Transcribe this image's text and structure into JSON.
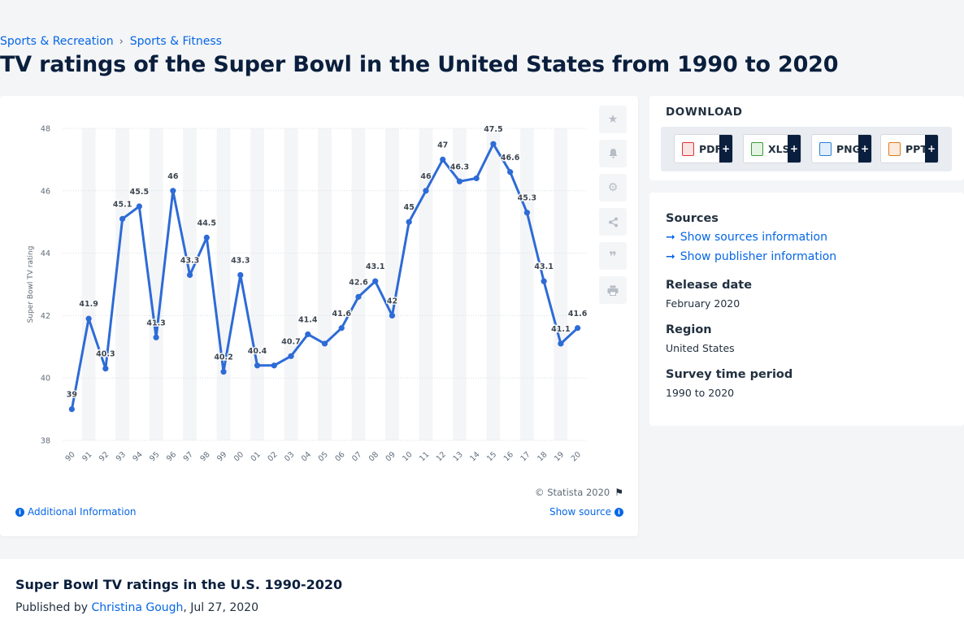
{
  "breadcrumb": {
    "item1": "Sports & Recreation",
    "separator": "›",
    "item2": "Sports & Fitness"
  },
  "page_title": "TV ratings of the Super Bowl in the United States from 1990 to 2020",
  "chart_data": {
    "type": "line",
    "title": "",
    "xlabel": "",
    "ylabel": "Super Bowl TV rating",
    "categories": [
      "90",
      "91",
      "92",
      "93",
      "94",
      "95",
      "96",
      "97",
      "98",
      "99",
      "00",
      "01",
      "02",
      "03",
      "04",
      "05",
      "06",
      "07",
      "08",
      "09",
      "10",
      "11",
      "12",
      "13",
      "14",
      "15",
      "16",
      "17",
      "18",
      "19",
      "20"
    ],
    "series": [
      {
        "values": [
          39,
          41.9,
          40.3,
          45.1,
          45.5,
          41.3,
          46,
          43.3,
          44.5,
          40.2,
          43.3,
          40.4,
          40.4,
          40.7,
          41.4,
          41.1,
          41.6,
          42.6,
          43.1,
          42,
          45,
          46,
          47,
          46.3,
          46.4,
          47.5,
          46.6,
          45.3,
          43.1,
          41.1,
          41.6
        ]
      }
    ],
    "data_labels": [
      "39",
      "41.9",
      "40.3",
      "45.1",
      "45.5",
      "41.3",
      "46",
      "43.3",
      "44.5",
      "40.2",
      "43.3",
      "40.4",
      "",
      "40.7",
      "41.4",
      "",
      "41.6",
      "42.6",
      "43.1",
      "42",
      "45",
      "46",
      "47",
      "46.3",
      "",
      "47.5",
      "46.6",
      "45.3",
      "43.1",
      "41.1",
      "41.6"
    ],
    "yticks": [
      38,
      40,
      42,
      44,
      46,
      48
    ],
    "ylim": [
      38,
      48
    ],
    "grid": true,
    "line_color": "#2d6bd6"
  },
  "chart_footer": {
    "copyright": "© Statista 2020",
    "additional_info": "Additional Information",
    "show_source": "Show source"
  },
  "download": {
    "title": "DOWNLOAD",
    "buttons": [
      {
        "label": "PDF",
        "plus": "+",
        "color": "#d33"
      },
      {
        "label": "XLS",
        "plus": "+",
        "color": "#3a9a3a"
      },
      {
        "label": "PNG",
        "plus": "+",
        "color": "#2a7fd4"
      },
      {
        "label": "PPT",
        "plus": "+",
        "color": "#e07a1f"
      }
    ]
  },
  "meta": {
    "sources_title": "Sources",
    "sources_link": "Show sources information",
    "publisher_link": "Show publisher information",
    "release_title": "Release date",
    "release_value": "February 2020",
    "region_title": "Region",
    "region_value": "United States",
    "survey_title": "Survey time period",
    "survey_value": "1990 to 2020"
  },
  "bottom": {
    "title": "Super Bowl TV ratings in the U.S. 1990-2020",
    "published_by": "Published by",
    "author": "Christina Gough",
    "date": ", Jul 27, 2020"
  }
}
